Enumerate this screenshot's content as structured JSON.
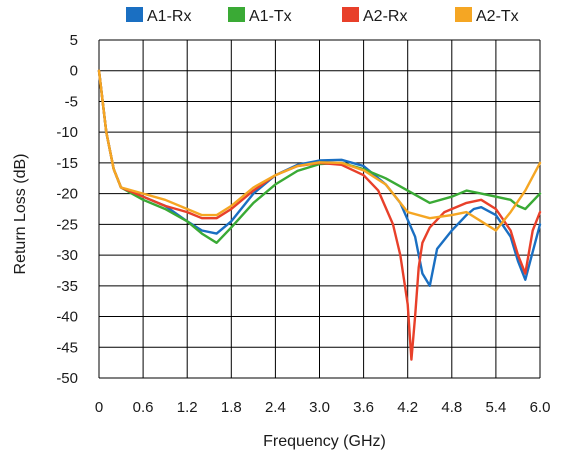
{
  "chart_data": {
    "type": "line",
    "title": "",
    "xlabel": "Frequency (GHz)",
    "ylabel": "Return Loss (dB)",
    "xlim": [
      0,
      6.0
    ],
    "ylim": [
      -50,
      5
    ],
    "grid": true,
    "legend_position": "top",
    "x_ticks": [
      "0",
      "0.6",
      "1.2",
      "1.8",
      "2.4",
      "3.0",
      "3.6",
      "4.2",
      "4.8",
      "5.4",
      "6.0"
    ],
    "y_ticks": [
      "5",
      "0",
      "-5",
      "-10",
      "-15",
      "-20",
      "-25",
      "-30",
      "-35",
      "-40",
      "-45",
      "-50"
    ],
    "series": [
      {
        "name": "A1-Rx",
        "color": "#1a6fc2",
        "x": [
          0,
          0.1,
          0.2,
          0.3,
          0.6,
          0.9,
          1.2,
          1.4,
          1.6,
          1.8,
          2.1,
          2.4,
          2.7,
          3.0,
          3.3,
          3.6,
          3.9,
          4.1,
          4.3,
          4.4,
          4.5,
          4.6,
          4.8,
          5.0,
          5.1,
          5.2,
          5.4,
          5.6,
          5.7,
          5.8,
          6.0
        ],
        "y": [
          0,
          -10,
          -16,
          -19,
          -20.5,
          -22,
          -24.5,
          -26,
          -26.5,
          -24.5,
          -20,
          -17,
          -15.3,
          -14.6,
          -14.5,
          -15.5,
          -18.5,
          -21.5,
          -27,
          -33,
          -35,
          -29,
          -26,
          -23.5,
          -22.5,
          -22.2,
          -23.5,
          -27,
          -31,
          -34,
          -25
        ]
      },
      {
        "name": "A1-Tx",
        "color": "#3aaa35",
        "x": [
          0,
          0.1,
          0.2,
          0.3,
          0.6,
          0.9,
          1.2,
          1.4,
          1.6,
          1.8,
          2.1,
          2.4,
          2.7,
          3.0,
          3.3,
          3.6,
          3.9,
          4.2,
          4.5,
          4.8,
          5.0,
          5.2,
          5.4,
          5.6,
          5.7,
          5.8,
          6.0
        ],
        "y": [
          0,
          -10,
          -16,
          -19,
          -21,
          -22.5,
          -24.5,
          -26.5,
          -28,
          -25.5,
          -21.5,
          -18.5,
          -16.3,
          -15.2,
          -15,
          -16,
          -17.5,
          -19.5,
          -21.5,
          -20.5,
          -19.5,
          -20,
          -20.5,
          -21,
          -22,
          -22.5,
          -20
        ]
      },
      {
        "name": "A2-Rx",
        "color": "#e8402a",
        "x": [
          0,
          0.1,
          0.2,
          0.3,
          0.6,
          0.9,
          1.2,
          1.4,
          1.6,
          1.8,
          2.1,
          2.4,
          2.7,
          3.0,
          3.3,
          3.6,
          3.8,
          4.0,
          4.1,
          4.2,
          4.25,
          4.3,
          4.35,
          4.4,
          4.5,
          4.7,
          5.0,
          5.2,
          5.4,
          5.6,
          5.7,
          5.8,
          5.9,
          6.0
        ],
        "y": [
          0,
          -10,
          -16,
          -19,
          -20.5,
          -22,
          -23,
          -24,
          -24,
          -22.5,
          -19.5,
          -17,
          -15.5,
          -15,
          -15.3,
          -17,
          -19.5,
          -25,
          -30,
          -38,
          -47,
          -40,
          -32,
          -28,
          -25.5,
          -23,
          -21.5,
          -21,
          -22.5,
          -26,
          -30,
          -33,
          -26,
          -23
        ]
      },
      {
        "name": "A2-Tx",
        "color": "#f5a623",
        "x": [
          0,
          0.1,
          0.2,
          0.3,
          0.6,
          0.9,
          1.2,
          1.4,
          1.6,
          1.8,
          2.1,
          2.4,
          2.7,
          3.0,
          3.3,
          3.6,
          3.9,
          4.2,
          4.5,
          4.8,
          5.0,
          5.2,
          5.4,
          5.6,
          5.8,
          6.0
        ],
        "y": [
          0,
          -10,
          -16,
          -19,
          -20,
          -21,
          -22.5,
          -23.5,
          -23.5,
          -22,
          -19,
          -17,
          -15.5,
          -14.9,
          -15,
          -16.2,
          -18.5,
          -23,
          -24,
          -23.5,
          -23,
          -24.5,
          -26,
          -23,
          -19.5,
          -15
        ]
      }
    ]
  }
}
